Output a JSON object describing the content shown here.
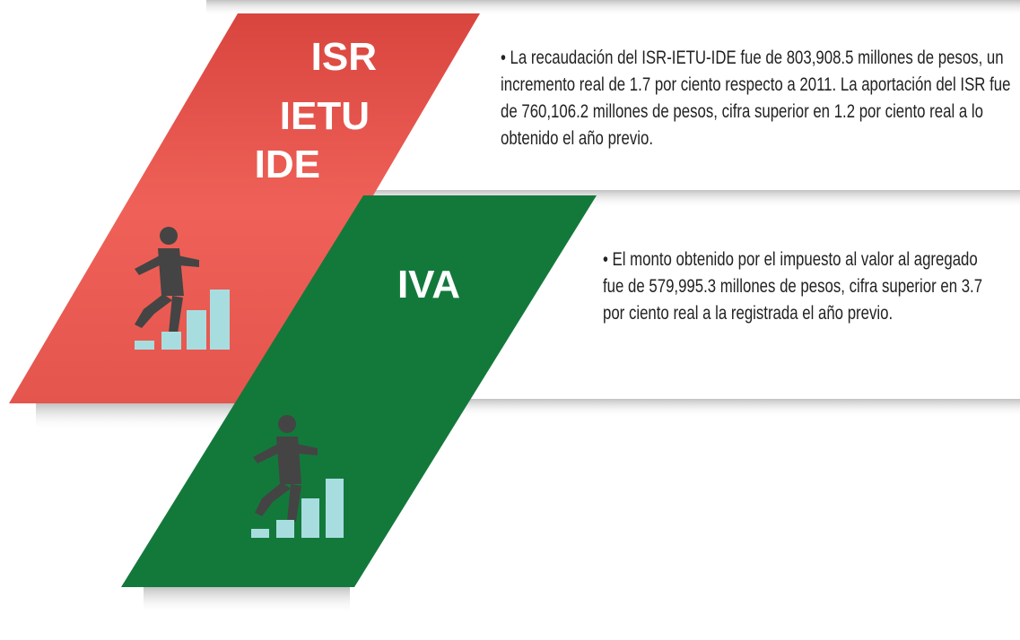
{
  "sections": [
    {
      "title_lines": [
        "ISR",
        "IETU",
        "IDE"
      ],
      "text": "• La recaudación del ISR-IETU-IDE fue de 803,908.5 millones de pesos, un incremento real de 1.7 por ciento respecto a 2011. La aportación del ISR fue de 760,106.2 millones de pesos, cifra superior en 1.2 por ciento real a lo obtenido el año previo."
    },
    {
      "title_lines": [
        "IVA"
      ],
      "text": "• El monto obtenido por el impuesto al valor al agregado fue de 579,995.3 millones de pesos, cifra superior en 3.7 por ciento real a la registrada el año previo."
    }
  ]
}
